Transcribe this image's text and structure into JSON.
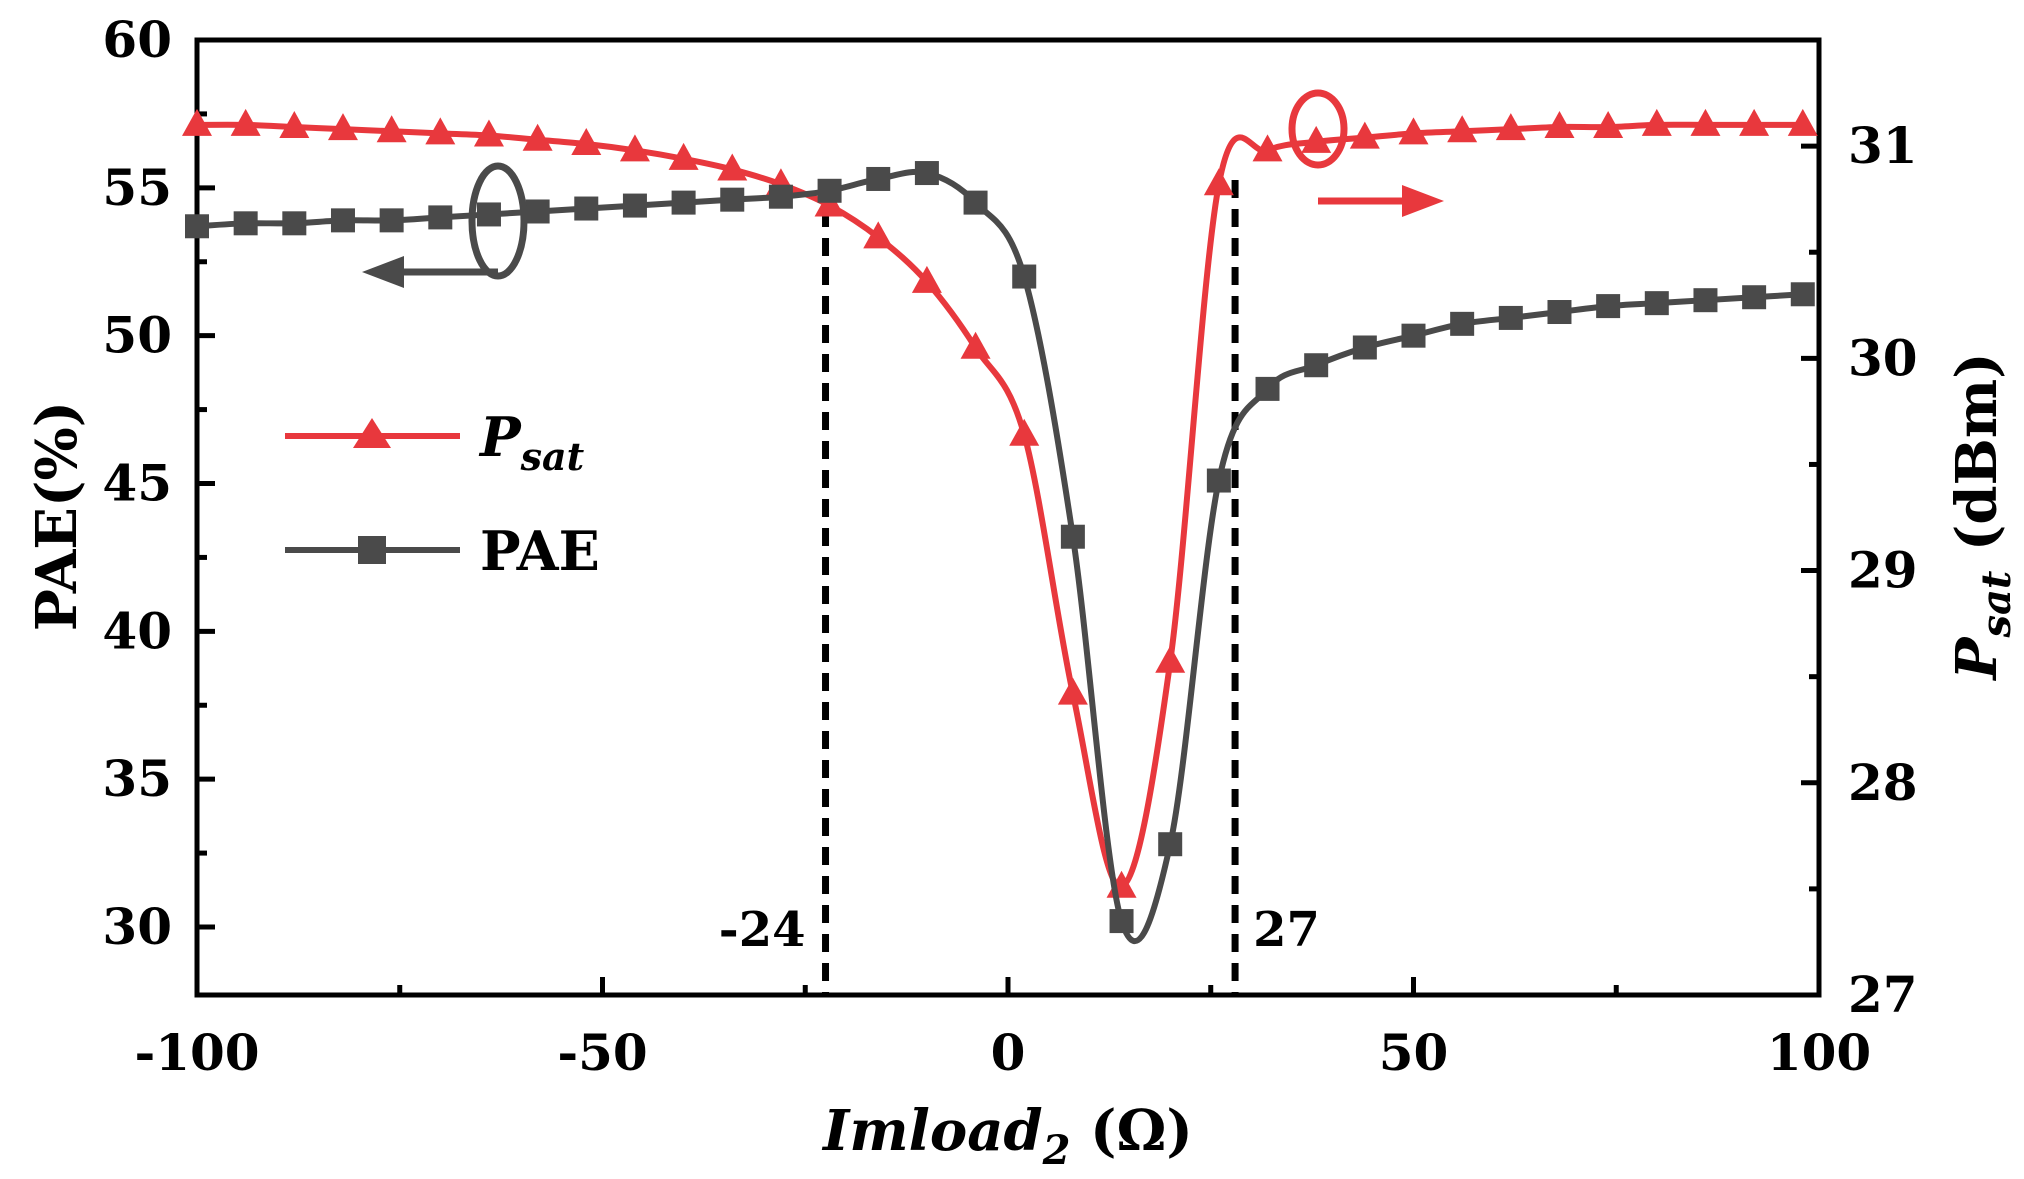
{
  "chart_data": {
    "type": "line",
    "xlabel": "Imload",
    "xlabel_sub": "2",
    "xlabel_unit": " (Ω)",
    "ylabel_left": "PAE(%)",
    "ylabel_right_main": "P",
    "ylabel_right_sub": "sat",
    "ylabel_right_unit": " (dBm)",
    "xlim": [
      -100,
      100
    ],
    "ylim_left": [
      27.7,
      60
    ],
    "ylim_right": [
      27,
      31.5
    ],
    "x_ticks": [
      -100,
      -50,
      0,
      50,
      100
    ],
    "x_tick_labels": [
      "-100",
      "-50",
      "0",
      "50",
      "100"
    ],
    "y_left_ticks": [
      30,
      35,
      40,
      45,
      50,
      55,
      60
    ],
    "y_left_tick_labels": [
      "30",
      "35",
      "40",
      "45",
      "50",
      "55",
      "60"
    ],
    "y_right_ticks": [
      27,
      28,
      29,
      30,
      31
    ],
    "y_right_tick_labels": [
      "27",
      "28",
      "29",
      "30",
      "31"
    ],
    "colors": {
      "psat": "#e8383d",
      "pae": "#4a4a4a",
      "axis": "#000000"
    },
    "series": [
      {
        "name": "P",
        "name_sub": "sat",
        "axis": "right",
        "marker": "triangle",
        "x": [
          -100,
          -94,
          -88,
          -82,
          -76,
          -70,
          -64,
          -58,
          -52,
          -46,
          -40,
          -34,
          -28,
          -22,
          -16,
          -10,
          -4,
          2,
          8,
          14,
          20,
          26,
          32,
          38,
          44,
          50,
          56,
          62,
          68,
          74,
          80,
          86,
          92,
          98
        ],
        "y": [
          31.1,
          31.1,
          31.09,
          31.08,
          31.07,
          31.06,
          31.05,
          31.03,
          31.01,
          30.98,
          30.94,
          30.89,
          30.82,
          30.72,
          30.57,
          30.36,
          30.05,
          29.64,
          28.42,
          27.51,
          28.57,
          30.82,
          30.98,
          31.02,
          31.04,
          31.06,
          31.07,
          31.08,
          31.09,
          31.09,
          31.1,
          31.1,
          31.1,
          31.1
        ]
      },
      {
        "name": "PAE",
        "axis": "left",
        "marker": "square",
        "x": [
          -100,
          -94,
          -88,
          -82,
          -76,
          -70,
          -64,
          -58,
          -52,
          -46,
          -40,
          -34,
          -28,
          -22,
          -16,
          -10,
          -4,
          2,
          8,
          14,
          20,
          26,
          32,
          38,
          44,
          50,
          56,
          62,
          68,
          74,
          80,
          86,
          92,
          98
        ],
        "y": [
          53.7,
          53.8,
          53.8,
          53.9,
          53.9,
          54.0,
          54.1,
          54.2,
          54.3,
          54.4,
          54.5,
          54.6,
          54.7,
          54.9,
          55.3,
          55.5,
          54.5,
          52.0,
          43.2,
          30.2,
          32.8,
          45.1,
          48.2,
          49.0,
          49.6,
          50.0,
          50.4,
          50.6,
          50.8,
          51.0,
          51.1,
          51.2,
          51.3,
          51.4
        ]
      }
    ],
    "annotations": [
      {
        "text": "-24",
        "x": -22.5
      },
      {
        "text": "27",
        "x": 28
      }
    ]
  }
}
